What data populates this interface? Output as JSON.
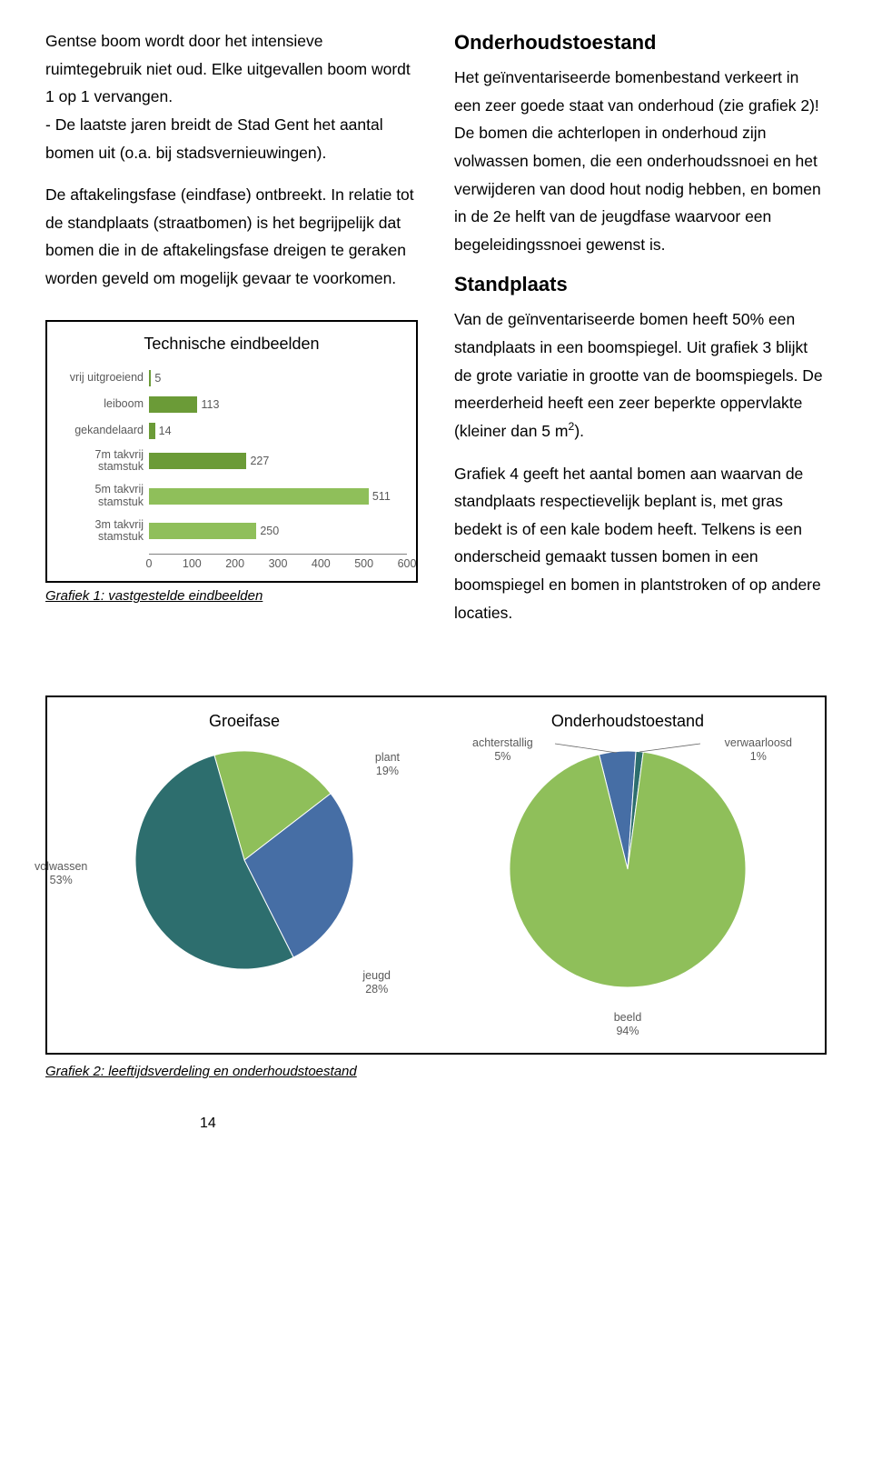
{
  "leftCol": {
    "p1": "Gentse boom wordt door het intensieve ruimtegebruik niet oud. Elke uitgevallen boom wordt 1 op 1 vervangen.",
    "p1b": "- De laatste jaren breidt de Stad Gent het aantal bomen uit (o.a. bij stadsvernieuwingen).",
    "p2": "De aftakelingsfase (eindfase) ontbreekt. In relatie tot de standplaats (straatbomen) is het begrijpelijk dat bomen die in de aftakelingsfase dreigen te geraken worden geveld om mogelijk gevaar te voorkomen."
  },
  "rightCol": {
    "h1": "Onderhoudstoestand",
    "p1": "Het geïnventariseerde bomenbestand verkeert in een zeer goede staat van onderhoud (zie grafiek 2)! De bomen die achterlopen in onderhoud zijn volwassen bomen, die een onderhoudssnoei en het verwijderen van dood hout nodig hebben, en bomen in de 2e helft van de jeugdfase waarvoor een begeleidingssnoei gewenst is.",
    "h2": "Standplaats",
    "p2a": "Van de geïnventariseerde bomen heeft 50% een standplaats in een boomspiegel. Uit grafiek 3 blijkt de grote variatie in grootte van de boomspiegels. De meerderheid heeft een zeer beperkte oppervlakte (kleiner dan 5 m",
    "p2a_sup": "2",
    "p2a_end": ").",
    "p3": "Grafiek 4 geeft het aantal bomen aan waarvan de standplaats respectievelijk beplant is, met gras bedekt  is of een kale bodem heeft. Telkens is een onderscheid gemaakt tussen bomen in een boomspiegel en bomen in plantstroken of op andere locaties."
  },
  "barChart": {
    "title": "Technische eindbeelden",
    "caption": "Grafiek 1: vastgestelde eindbeelden",
    "type": "bar-horizontal",
    "xlim": [
      0,
      600
    ],
    "xtick_step": 100,
    "xticks": [
      "0",
      "100",
      "200",
      "300",
      "400",
      "500",
      "600"
    ],
    "bar_color_primary": "#6b9b37",
    "bar_color_alt": "#8fbf5a",
    "categories": [
      {
        "label": "vrij uitgroeiend",
        "value": 5,
        "color": "#6b9b37"
      },
      {
        "label": "leiboom",
        "value": 113,
        "color": "#6b9b37"
      },
      {
        "label": "gekandelaard",
        "value": 14,
        "color": "#6b9b37"
      },
      {
        "label": "7m takvrij stamstuk",
        "value": 227,
        "color": "#6b9b37"
      },
      {
        "label": "5m takvrij stamstuk",
        "value": 511,
        "color": "#8fbf5a"
      },
      {
        "label": "3m takvrij stamstuk",
        "value": 250,
        "color": "#8fbf5a"
      }
    ]
  },
  "pieGroeifase": {
    "title": "Groeifase",
    "type": "pie",
    "slices": [
      {
        "label": "plant",
        "pct": 19,
        "color": "#8fbf5a",
        "labelText": "plant\n19%"
      },
      {
        "label": "jeugd",
        "pct": 28,
        "color": "#466ea5",
        "labelText": "jeugd\n28%"
      },
      {
        "label": "volwassen",
        "pct": 53,
        "color": "#2d6e6e",
        "labelText": "volwassen\n53%"
      }
    ]
  },
  "pieOnderhoud": {
    "title": "Onderhoudstoestand",
    "type": "pie",
    "slices": [
      {
        "label": "achterstallig",
        "pct": 5,
        "color": "#466ea5",
        "labelText": "achterstallig\n5%"
      },
      {
        "label": "verwaarloosd",
        "pct": 1,
        "color": "#2d6e6e",
        "labelText": "verwaarloosd\n1%"
      },
      {
        "label": "beeld",
        "pct": 94,
        "color": "#8fbf5a",
        "labelText": "beeld\n94%"
      }
    ]
  },
  "pieCaption": "Grafiek 2: leeftijdsverdeling en onderhoudstoestand",
  "pageNumber": "14"
}
